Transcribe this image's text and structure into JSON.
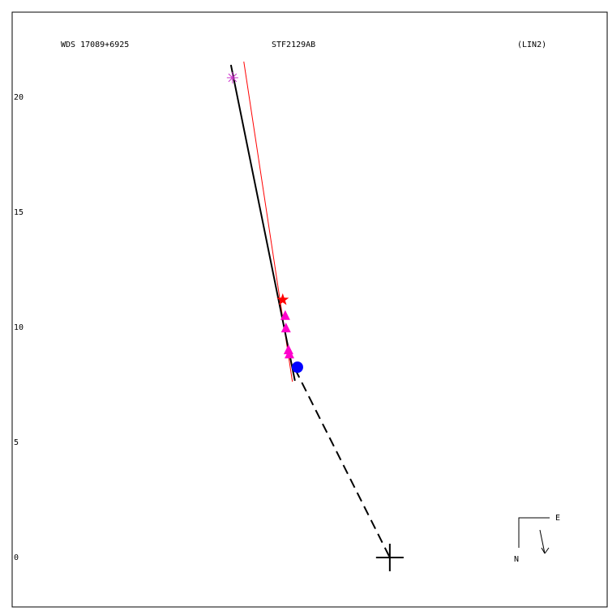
{
  "chart_data": {
    "type": "scatter",
    "title": "WDS 17089+6925",
    "subtitle": "STF2129AB",
    "annotation": "(LIN2)",
    "compass": {
      "east": "E",
      "north": "N"
    },
    "xlim": [
      -16.4,
      9.44
    ],
    "ylim": [
      -2.15,
      23.7
    ],
    "yticks": [
      0,
      5,
      10,
      15,
      20
    ],
    "primary": {
      "x": 0,
      "y": 0
    },
    "series": [
      {
        "marker": "asterisk",
        "color": "#cc33cc",
        "x": [
          -6.83
        ],
        "y": [
          20.85
        ]
      },
      {
        "marker": "star",
        "color": "#ff0000",
        "x": [
          -4.65
        ],
        "y": [
          11.2
        ]
      },
      {
        "marker": "triangle",
        "color": "#ff00cc",
        "x": [
          -4.54,
          -4.51,
          -4.4,
          -4.36
        ],
        "y": [
          10.5,
          9.96,
          9.01,
          8.83
        ]
      },
      {
        "marker": "circle",
        "color": "#0000ff",
        "x": [
          -4.01
        ],
        "y": [
          8.27
        ]
      }
    ],
    "lines": [
      {
        "color": "#ff0000",
        "dash": false,
        "width": 1,
        "x": [
          -6.34,
          -4.23
        ],
        "y": [
          21.55,
          7.64
        ]
      },
      {
        "color": "#000000",
        "dash": false,
        "width": 2,
        "x": [
          -6.9,
          -4.12
        ],
        "y": [
          21.41,
          7.68
        ]
      },
      {
        "color": "#000000",
        "dash": true,
        "width": 2,
        "x": [
          -4.12,
          0
        ],
        "y": [
          8.2,
          0
        ]
      }
    ]
  }
}
